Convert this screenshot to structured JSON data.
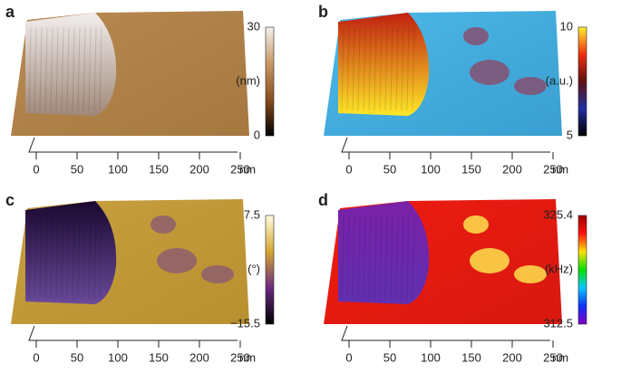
{
  "panels": [
    {
      "label": "a",
      "colorbar": {
        "max": "30",
        "min": "0",
        "unit": "(nm)"
      },
      "x_ticks": [
        "0",
        "50",
        "100",
        "150",
        "200",
        "250"
      ],
      "x_unit": "nm"
    },
    {
      "label": "b",
      "colorbar": {
        "max": "10",
        "min": "5",
        "unit": "(a.u.)"
      },
      "x_ticks": [
        "0",
        "50",
        "100",
        "150",
        "200",
        "250"
      ],
      "x_unit": "nm"
    },
    {
      "label": "c",
      "colorbar": {
        "max": "7.5",
        "min": "−15.5",
        "unit": "(°)"
      },
      "x_ticks": [
        "0",
        "50",
        "100",
        "150",
        "200",
        "250"
      ],
      "x_unit": "nm"
    },
    {
      "label": "d",
      "colorbar": {
        "max": "325.4",
        "min": "312.5",
        "unit": "(kHz)"
      },
      "x_ticks": [
        "0",
        "50",
        "100",
        "150",
        "200",
        "250"
      ],
      "x_unit": "nm"
    }
  ]
}
